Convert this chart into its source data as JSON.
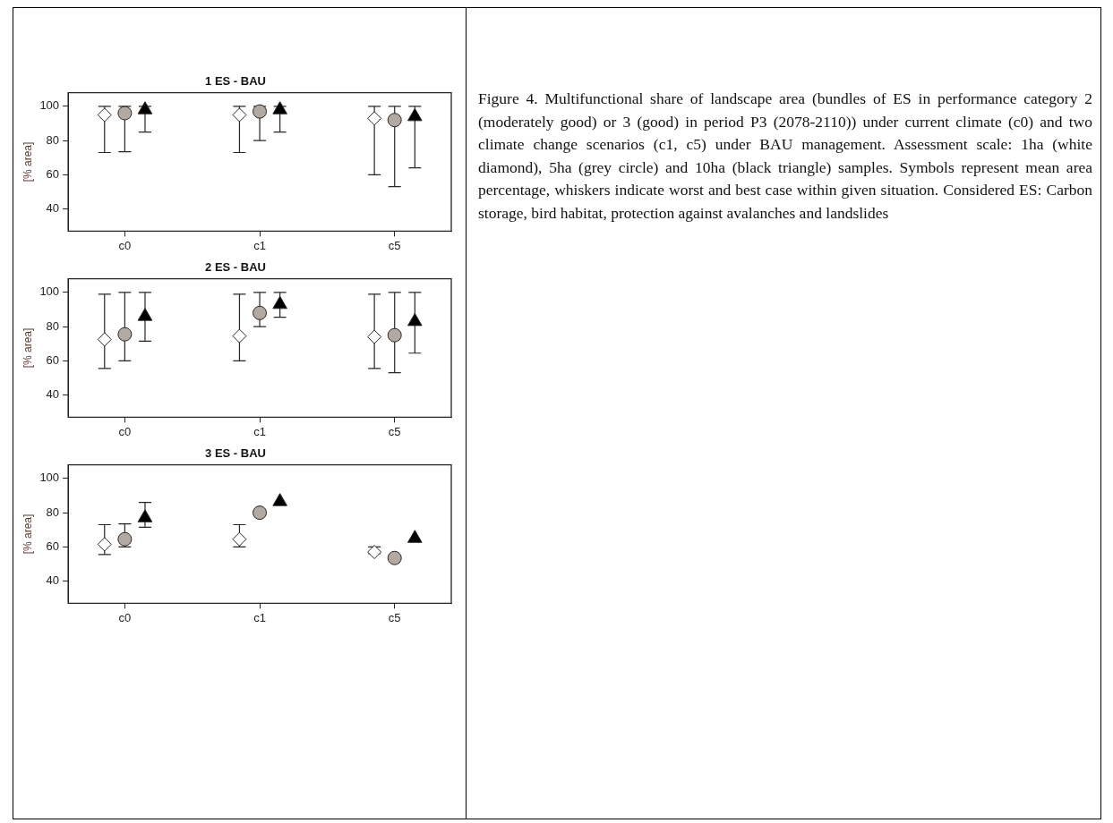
{
  "chart_data": [
    {
      "type": "scatter",
      "title": "1 ES - BAU",
      "ylabel": "[% area]",
      "categories": [
        "c0",
        "c1",
        "c5"
      ],
      "ylim": [
        27,
        108
      ],
      "yticks": [
        40,
        60,
        80,
        100
      ],
      "series": [
        {
          "marker": "diamond",
          "color": "#ffffff",
          "values": [
            95,
            95,
            93
          ],
          "errors": [
            [
              73,
              100
            ],
            [
              73,
              100
            ],
            [
              60,
              100
            ]
          ]
        },
        {
          "marker": "circle",
          "color": "#b3a9a3",
          "values": [
            96,
            97,
            92
          ],
          "errors": [
            [
              73.5,
              100
            ],
            [
              80,
              100
            ],
            [
              53,
              100
            ]
          ]
        },
        {
          "marker": "triangle",
          "color": "#000000",
          "values": [
            98,
            98,
            94
          ],
          "errors": [
            [
              85,
              100
            ],
            [
              85,
              100
            ],
            [
              64,
              100
            ]
          ]
        }
      ]
    },
    {
      "type": "scatter",
      "title": "2 ES - BAU",
      "ylabel": "[% area]",
      "categories": [
        "c0",
        "c1",
        "c5"
      ],
      "ylim": [
        27,
        108
      ],
      "yticks": [
        40,
        60,
        80,
        100
      ],
      "series": [
        {
          "marker": "diamond",
          "color": "#ffffff",
          "values": [
            72.5,
            74.5,
            74
          ],
          "errors": [
            [
              55.5,
              99
            ],
            [
              60,
              99
            ],
            [
              55.5,
              99
            ]
          ]
        },
        {
          "marker": "circle",
          "color": "#b3a9a3",
          "values": [
            75.5,
            88,
            75
          ],
          "errors": [
            [
              60,
              100
            ],
            [
              80,
              100
            ],
            [
              53,
              100
            ]
          ]
        },
        {
          "marker": "triangle",
          "color": "#000000",
          "values": [
            86,
            93,
            83
          ],
          "errors": [
            [
              71.5,
              100
            ],
            [
              85.5,
              100
            ],
            [
              64.5,
              100
            ]
          ]
        }
      ]
    },
    {
      "type": "scatter",
      "title": "3 ES - BAU",
      "ylabel": "[% area]",
      "categories": [
        "c0",
        "c1",
        "c5"
      ],
      "ylim": [
        27,
        108
      ],
      "yticks": [
        40,
        60,
        80,
        100
      ],
      "series": [
        {
          "marker": "diamond",
          "color": "#ffffff",
          "values": [
            61.5,
            64.5,
            57
          ],
          "errors": [
            [
              55.5,
              73
            ],
            [
              60,
              73
            ],
            [
              56,
              60
            ]
          ]
        },
        {
          "marker": "circle",
          "color": "#b3a9a3",
          "values": [
            64.5,
            80,
            53.5
          ],
          "errors": [
            [
              60,
              73.5
            ],
            null,
            null
          ]
        },
        {
          "marker": "triangle",
          "color": "#000000",
          "values": [
            77,
            86.5,
            65
          ],
          "errors": [
            [
              71.5,
              86
            ],
            null,
            null
          ]
        }
      ]
    },
    {
      "type": "other",
      "annotations": [
        "Figure 4. Multifunctional share of landscape area (bundles of ES in performance category 2 (moderately good) or 3 (good) in period P3 (2078-2110)) under current climate (c0) and two climate change scenarios (c1, c5) under BAU management. Assessment scale: 1ha (white diamond), 5ha (grey circle) and 10ha (black triangle) samples. Symbols represent mean area percentage, whiskers indicate worst and best case within given situation. Considered ES: Carbon storage, bird habitat, protection against avalanches and landslides"
      ]
    }
  ]
}
